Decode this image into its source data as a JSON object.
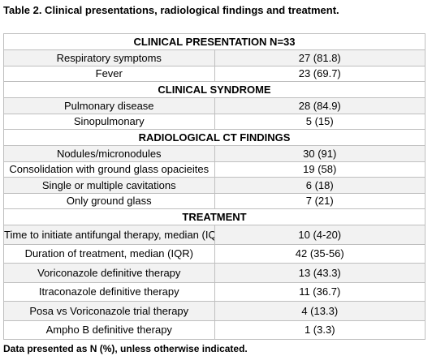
{
  "title": "Table 2. Clinical presentations, radiological findings and treatment.",
  "table": {
    "sections": [
      {
        "header": "CLINICAL PRESENTATION   N=33",
        "rows": [
          [
            "Respiratory symptoms",
            "27 (81.8)"
          ],
          [
            "Fever",
            "23 (69.7)"
          ]
        ]
      },
      {
        "header": "CLINICAL SYNDROME",
        "rows": [
          [
            "Pulmonary disease",
            "28 (84.9)"
          ],
          [
            "Sinopulmonary",
            "5 (15)"
          ]
        ]
      },
      {
        "header": "RADIOLOGICAL CT FINDINGS",
        "rows": [
          [
            "Nodules/micronodules",
            "30 (91)"
          ],
          [
            "Consolidation with ground glass opacieites",
            "19 (58)"
          ],
          [
            "Single or multiple cavitations",
            "6 (18)"
          ],
          [
            "Only ground glass",
            "7 (21)"
          ]
        ]
      },
      {
        "header": "TREATMENT",
        "rows": [
          [
            "Time to initiate antifungal therapy, median (IQR)",
            "10 (4-20)"
          ],
          [
            "Duration of treatment, median (IQR)",
            "42 (35-56)"
          ],
          [
            "Voriconazole definitive therapy",
            "13 (43.3)"
          ],
          [
            "Itraconazole definitive therapy",
            "11 (36.7)"
          ],
          [
            "Posa vs Voriconazole trial therapy",
            "4 (13.3)"
          ],
          [
            "Ampho B definitive therapy",
            "1 (3.3)"
          ]
        ]
      }
    ]
  },
  "footnote": "Data presented as N (%), unless otherwise indicated."
}
